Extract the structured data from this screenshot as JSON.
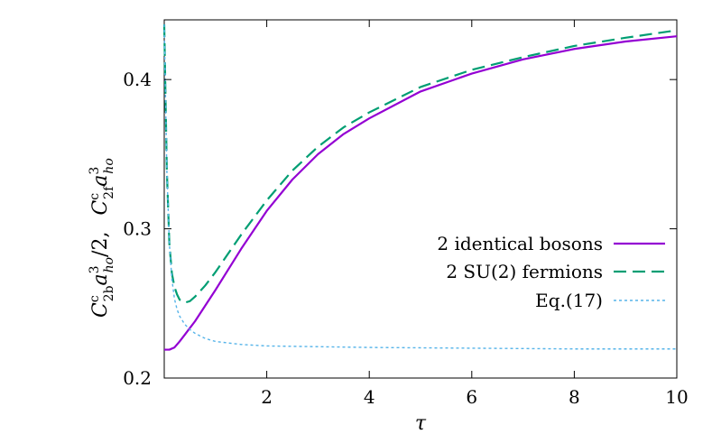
{
  "chart_data": {
    "type": "line",
    "xlabel": "τ",
    "ylabel": "C^c_{2b} a^3_{ho}/2,  C^c_{2f} a^3_{ho}",
    "ylabel_parts": {
      "b_C": "C",
      "b_sup": "c",
      "b_sub": "2b",
      "b_a": "a",
      "b_asup": "3",
      "b_asub": "ho",
      "b_tail": "/2,",
      "f_C": "C",
      "f_sup": "c",
      "f_sub": "2f",
      "f_a": "a",
      "f_asup": "3",
      "f_asub": "ho"
    },
    "xlim": [
      0,
      10
    ],
    "ylim": [
      0.2,
      0.44
    ],
    "x_ticks": [
      {
        "value": 2,
        "label": "2"
      },
      {
        "value": 4,
        "label": "4"
      },
      {
        "value": 6,
        "label": "6"
      },
      {
        "value": 8,
        "label": "8"
      },
      {
        "value": 10,
        "label": "10"
      }
    ],
    "y_ticks": [
      {
        "value": 0.2,
        "label": "0.2"
      },
      {
        "value": 0.3,
        "label": "0.3"
      },
      {
        "value": 0.4,
        "label": "0.4"
      }
    ],
    "grid": false,
    "legend_position": "bottom-right",
    "series": [
      {
        "name": "2 identical bosons",
        "color": "#9400d3",
        "style": "solid",
        "x": [
          0.0,
          0.1,
          0.2,
          0.3,
          0.4,
          0.5,
          0.6,
          0.8,
          1.0,
          1.5,
          2.0,
          2.5,
          3.0,
          3.5,
          4.0,
          5.0,
          6.0,
          7.0,
          8.0,
          9.0,
          10.0
        ],
        "y": [
          0.219,
          0.219,
          0.2205,
          0.2245,
          0.229,
          0.2335,
          0.238,
          0.2485,
          0.259,
          0.2865,
          0.312,
          0.333,
          0.35,
          0.3635,
          0.374,
          0.392,
          0.404,
          0.4135,
          0.4205,
          0.4255,
          0.429
        ]
      },
      {
        "name": "2 SU(2) fermions",
        "color": "#009e73",
        "style": "dashed",
        "x": [
          0.0,
          0.05,
          0.1,
          0.15,
          0.2,
          0.25,
          0.3,
          0.4,
          0.5,
          0.6,
          0.8,
          1.0,
          1.5,
          2.0,
          2.5,
          3.0,
          3.5,
          4.0,
          5.0,
          6.0,
          7.0,
          8.0,
          9.0,
          10.0
        ],
        "y": [
          0.437,
          0.34,
          0.29,
          0.27,
          0.261,
          0.256,
          0.2525,
          0.2505,
          0.2515,
          0.2545,
          0.262,
          0.271,
          0.296,
          0.319,
          0.339,
          0.355,
          0.368,
          0.378,
          0.395,
          0.4065,
          0.415,
          0.4225,
          0.428,
          0.433
        ]
      },
      {
        "name": "Eq.(17)",
        "color": "#56b4e9",
        "style": "dotted",
        "x": [
          0.0,
          0.05,
          0.1,
          0.15,
          0.2,
          0.25,
          0.3,
          0.4,
          0.5,
          0.6,
          0.8,
          1.0,
          1.5,
          2.0,
          3.0,
          4.0,
          6.0,
          8.0,
          10.0
        ],
        "y": [
          0.437,
          0.34,
          0.29,
          0.266,
          0.253,
          0.246,
          0.2415,
          0.236,
          0.2325,
          0.23,
          0.2265,
          0.2245,
          0.2225,
          0.2215,
          0.221,
          0.2205,
          0.22,
          0.2195,
          0.2195
        ]
      }
    ]
  }
}
